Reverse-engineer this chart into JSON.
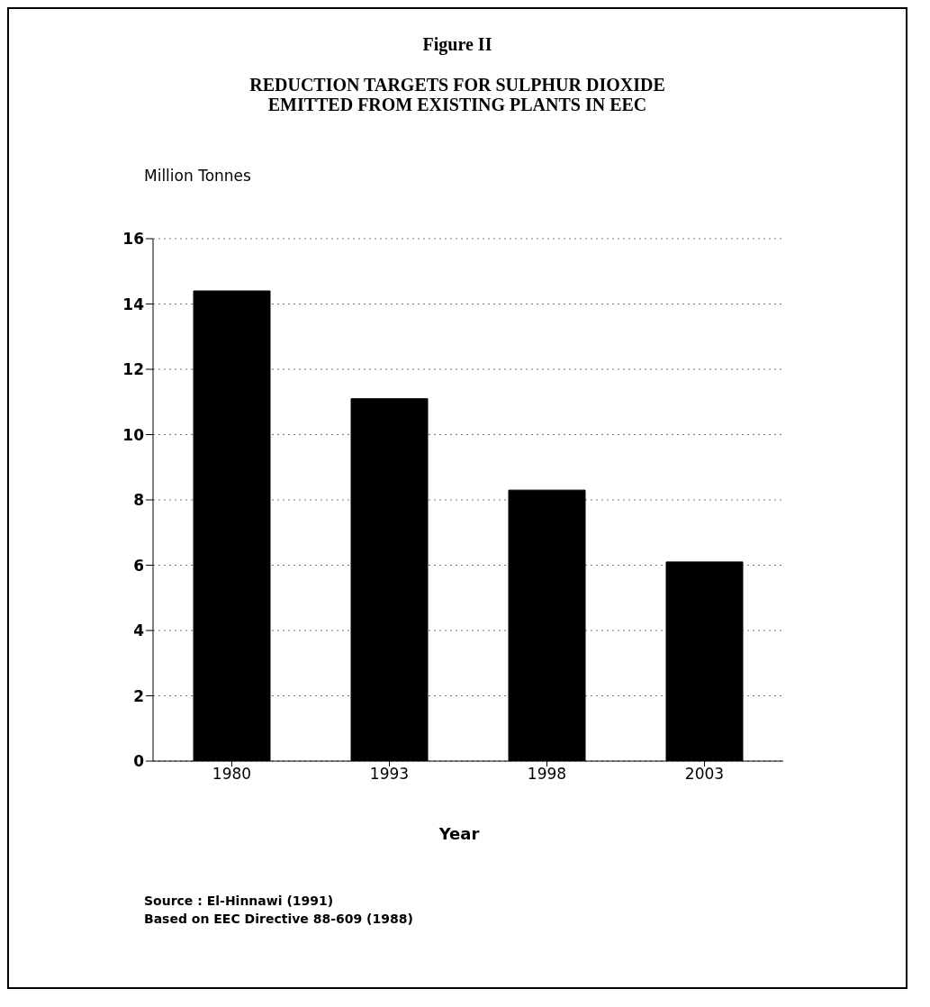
{
  "chart_data": {
    "type": "bar",
    "title": "Figure II",
    "subtitle": "REDUCTION TARGETS FOR SULPHUR DIOXIDE\nEMITTED FROM EXISTING PLANTS IN EEC",
    "ylabel": "Million Tonnes",
    "xlabel": "Year",
    "categories": [
      "1980",
      "1993",
      "1998",
      "2003"
    ],
    "values": [
      14.4,
      11.1,
      8.3,
      6.1
    ],
    "color": "#000000",
    "ylim": [
      0,
      16
    ],
    "yticks": [
      0,
      2,
      4,
      6,
      8,
      10,
      12,
      14,
      16
    ],
    "grid": "y",
    "annotations": [
      "Source : El-Hinnawi (1991)",
      "Based on EEC Directive 88-609 (1988)"
    ]
  }
}
